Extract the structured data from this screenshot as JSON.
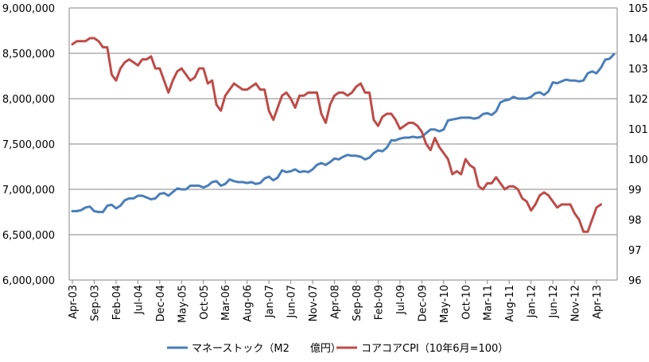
{
  "chart_data": {
    "type": "line",
    "title": "",
    "grid": true,
    "legend_position": "bottom",
    "x_tick_labels": [
      "Apr-03",
      "Sep-03",
      "Feb-04",
      "Jul-04",
      "Dec-04",
      "May-05",
      "Oct-05",
      "Mar-06",
      "Aug-06",
      "Jan-07",
      "Jun-07",
      "Nov-07",
      "Apr-08",
      "Sep-08",
      "Feb-09",
      "Jul-09",
      "Dec-09",
      "May-10",
      "Oct-10",
      "Mar-11",
      "Aug-11",
      "Jan-12",
      "Jun-12",
      "Nov-12",
      "Apr-13"
    ],
    "y_left": {
      "min": 6000000,
      "max": 9000000,
      "ticks": [
        "6,000,000",
        "6,500,000",
        "7,000,000",
        "7,500,000",
        "8,000,000",
        "8,500,000",
        "9,000,000"
      ]
    },
    "y_right": {
      "min": 96,
      "max": 105,
      "ticks": [
        "96",
        "97",
        "98",
        "99",
        "100",
        "101",
        "102",
        "103",
        "104",
        "105"
      ]
    },
    "series": [
      {
        "name": "マネーストック（M2　　億円）",
        "axis": "left",
        "color": "#4a7ebb",
        "values": [
          6760000,
          6760000,
          6770000,
          6800000,
          6810000,
          6760000,
          6750000,
          6750000,
          6820000,
          6830000,
          6790000,
          6820000,
          6880000,
          6900000,
          6900000,
          6930000,
          6930000,
          6910000,
          6890000,
          6900000,
          6950000,
          6960000,
          6930000,
          6970000,
          7010000,
          7000000,
          7000000,
          7040000,
          7040000,
          7040000,
          7020000,
          7040000,
          7080000,
          7090000,
          7040000,
          7060000,
          7110000,
          7090000,
          7080000,
          7080000,
          7070000,
          7080000,
          7060000,
          7070000,
          7120000,
          7140000,
          7100000,
          7130000,
          7210000,
          7190000,
          7200000,
          7220000,
          7190000,
          7200000,
          7190000,
          7220000,
          7270000,
          7290000,
          7270000,
          7300000,
          7340000,
          7330000,
          7360000,
          7380000,
          7370000,
          7370000,
          7360000,
          7330000,
          7350000,
          7400000,
          7430000,
          7420000,
          7460000,
          7540000,
          7540000,
          7560000,
          7570000,
          7570000,
          7580000,
          7570000,
          7580000,
          7620000,
          7660000,
          7660000,
          7640000,
          7660000,
          7760000,
          7770000,
          7780000,
          7790000,
          7790000,
          7790000,
          7780000,
          7790000,
          7830000,
          7840000,
          7820000,
          7860000,
          7960000,
          7980000,
          7990000,
          8020000,
          8000000,
          8000000,
          8000000,
          8020000,
          8060000,
          8070000,
          8040000,
          8080000,
          8180000,
          8170000,
          8190000,
          8210000,
          8200000,
          8200000,
          8190000,
          8200000,
          8280000,
          8300000,
          8280000,
          8340000,
          8430000,
          8440000,
          8490000
        ]
      },
      {
        "name": "コアコアCPI（10年6月=100）",
        "axis": "right",
        "color": "#be4b48",
        "values": [
          103.8,
          103.9,
          103.9,
          103.9,
          104.0,
          104.0,
          103.9,
          103.7,
          103.7,
          102.8,
          102.6,
          103.0,
          103.2,
          103.3,
          103.2,
          103.1,
          103.3,
          103.3,
          103.4,
          103.0,
          103.0,
          102.6,
          102.2,
          102.6,
          102.9,
          103.0,
          102.8,
          102.6,
          102.7,
          103.0,
          103.0,
          102.5,
          102.6,
          101.8,
          101.6,
          102.1,
          102.3,
          102.5,
          102.4,
          102.3,
          102.3,
          102.4,
          102.5,
          102.3,
          102.3,
          101.6,
          101.3,
          101.7,
          102.1,
          102.2,
          102.0,
          101.7,
          102.1,
          102.1,
          102.2,
          102.2,
          102.2,
          101.5,
          101.2,
          101.8,
          102.1,
          102.2,
          102.2,
          102.1,
          102.2,
          102.4,
          102.5,
          102.2,
          102.2,
          101.3,
          101.1,
          101.4,
          101.5,
          101.5,
          101.3,
          101.0,
          101.1,
          101.2,
          101.2,
          101.1,
          100.9,
          100.5,
          100.3,
          100.7,
          100.4,
          100.2,
          100.0,
          99.5,
          99.6,
          99.5,
          100.0,
          99.8,
          99.7,
          99.1,
          99.0,
          99.2,
          99.2,
          99.4,
          99.2,
          99.0,
          99.1,
          99.1,
          99.0,
          98.7,
          98.6,
          98.3,
          98.5,
          98.8,
          98.9,
          98.8,
          98.6,
          98.4,
          98.5,
          98.5,
          98.5,
          98.2,
          98.0,
          97.6,
          97.6,
          98.0,
          98.4,
          98.5
        ]
      }
    ]
  }
}
